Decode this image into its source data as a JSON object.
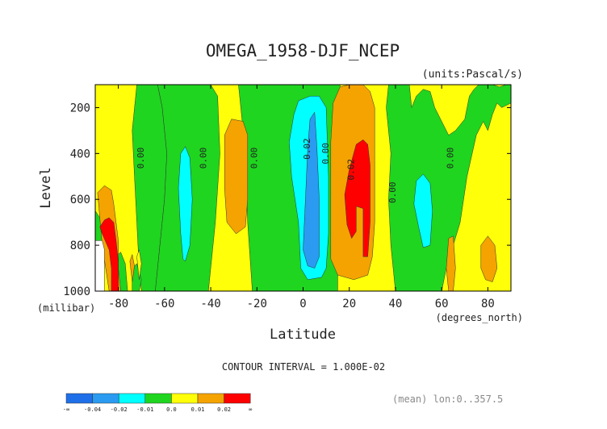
{
  "chart_data": {
    "type": "contour",
    "title": "OMEGA_1958-DJF_NCEP",
    "units_label": "(units:Pascal/s)",
    "xlabel": "Latitude",
    "ylabel": "Level",
    "x_unit_label": "(degrees_north)",
    "y_unit_label": "(millibar)",
    "xlim": [
      -90,
      90
    ],
    "ylim": [
      1000,
      100
    ],
    "x_ticks": [
      -80,
      -60,
      -40,
      -20,
      0,
      20,
      40,
      60,
      80
    ],
    "y_ticks": [
      200,
      400,
      600,
      800,
      1000
    ],
    "contour_interval_text": "CONTOUR INTERVAL = 1.000E-02",
    "mean_text": "(mean) lon:0..357.5",
    "colorbar": {
      "labels": [
        "-∞",
        "-0.04",
        "-0.02",
        "-0.01",
        "0.0",
        "0.01",
        "0.02",
        "∞"
      ],
      "colors": [
        "#1f6fe8",
        "#2a9bf0",
        "#00ffff",
        "#1fd51f",
        "#ffff0a",
        "#f5a300",
        "#ff0000"
      ]
    },
    "background_color": "#ffff0a",
    "regions": [
      {
        "value_band": "0.0 to 0.01",
        "color": "#ffff0a",
        "polygon": [
          [
            -90,
            100
          ],
          [
            90,
            100
          ],
          [
            90,
            1000
          ],
          [
            -90,
            1000
          ]
        ]
      },
      {
        "value_band": "-0.01 to 0.0",
        "color": "#1fd51f",
        "polygon": [
          [
            -72,
            100
          ],
          [
            -63,
            100
          ],
          [
            -61,
            200
          ],
          [
            -59,
            400
          ],
          [
            -60,
            600
          ],
          [
            -62,
            800
          ],
          [
            -64,
            1000
          ],
          [
            -70,
            1000
          ],
          [
            -71,
            900
          ],
          [
            -72,
            700
          ],
          [
            -73,
            500
          ],
          [
            -74,
            300
          ]
        ]
      },
      {
        "value_band": "-0.01 to 0.0",
        "color": "#1fd51f",
        "polygon": [
          [
            -63,
            100
          ],
          [
            -40,
            100
          ],
          [
            -37,
            150
          ],
          [
            -36,
            400
          ],
          [
            -38,
            700
          ],
          [
            -41,
            1000
          ],
          [
            -64,
            1000
          ],
          [
            -62,
            800
          ],
          [
            -60,
            600
          ],
          [
            -59,
            400
          ],
          [
            -61,
            200
          ]
        ]
      },
      {
        "value_band": "-0.01 to 0.0",
        "color": "#1fd51f",
        "polygon": [
          [
            -28,
            100
          ],
          [
            16,
            100
          ],
          [
            16,
            350
          ],
          [
            15,
            700
          ],
          [
            15,
            1000
          ],
          [
            -22,
            1000
          ],
          [
            -24,
            700
          ],
          [
            -25,
            400
          ],
          [
            -27,
            200
          ]
        ]
      },
      {
        "value_band": "-0.01 to 0.0",
        "color": "#1fd51f",
        "polygon": [
          [
            37,
            100
          ],
          [
            46,
            100
          ],
          [
            47,
            200
          ],
          [
            49,
            150
          ],
          [
            52,
            120
          ],
          [
            55,
            130
          ],
          [
            57,
            200
          ],
          [
            60,
            260
          ],
          [
            63,
            320
          ],
          [
            66,
            300
          ],
          [
            70,
            250
          ],
          [
            72,
            150
          ],
          [
            74,
            120
          ],
          [
            76,
            100
          ],
          [
            82,
            100
          ],
          [
            85,
            110
          ],
          [
            88,
            100
          ],
          [
            90,
            100
          ],
          [
            90,
            180
          ],
          [
            86,
            200
          ],
          [
            84,
            180
          ],
          [
            82,
            230
          ],
          [
            80,
            300
          ],
          [
            78,
            260
          ],
          [
            75,
            320
          ],
          [
            71,
            500
          ],
          [
            68,
            700
          ],
          [
            65,
            800
          ],
          [
            62,
            900
          ],
          [
            60,
            1000
          ],
          [
            40,
            1000
          ],
          [
            38,
            800
          ],
          [
            37,
            600
          ],
          [
            38,
            400
          ],
          [
            36,
            200
          ]
        ]
      },
      {
        "value_band": "-0.01 to 0.0",
        "color": "#1fd51f",
        "polygon": [
          [
            -90,
            650
          ],
          [
            -88,
            680
          ],
          [
            -87,
            700
          ],
          [
            -87,
            1000
          ],
          [
            -90,
            1000
          ]
        ]
      },
      {
        "value_band": "-0.01 to 0.0",
        "color": "#1fd51f",
        "polygon": [
          [
            -81,
            850
          ],
          [
            -79,
            830
          ],
          [
            -77,
            880
          ],
          [
            -76,
            1000
          ],
          [
            -81,
            1000
          ]
        ]
      },
      {
        "value_band": "-0.01 to 0.0",
        "color": "#1fd51f",
        "polygon": [
          [
            -74,
            900
          ],
          [
            -72,
            880
          ],
          [
            -70,
            950
          ],
          [
            -71,
            1000
          ],
          [
            -74,
            1000
          ]
        ]
      },
      {
        "value_band": "0.0 to 0.01",
        "color": "#ffff0a",
        "polygon": [
          [
            -72,
            850
          ],
          [
            -71,
            820
          ],
          [
            -70,
            880
          ],
          [
            -71,
            950
          ]
        ]
      },
      {
        "value_band": "0.01 to 0.02",
        "color": "#f5a300",
        "polygon": [
          [
            -89,
            570
          ],
          [
            -86,
            540
          ],
          [
            -83,
            560
          ],
          [
            -82,
            620
          ],
          [
            -81,
            700
          ],
          [
            -80,
            780
          ],
          [
            -80,
            900
          ],
          [
            -79,
            1000
          ],
          [
            -84,
            1000
          ],
          [
            -87,
            800
          ]
        ]
      },
      {
        "value_band": "0.01 to 0.02",
        "color": "#f5a300",
        "polygon": [
          [
            -75,
            870
          ],
          [
            -74,
            840
          ],
          [
            -73,
            890
          ],
          [
            -74,
            960
          ]
        ]
      },
      {
        "value_band": "0.01 to 0.02",
        "color": "#f5a300",
        "polygon": [
          [
            -34,
            320
          ],
          [
            -31,
            250
          ],
          [
            -26,
            260
          ],
          [
            -24,
            320
          ],
          [
            -24,
            600
          ],
          [
            -25,
            720
          ],
          [
            -29,
            750
          ],
          [
            -33,
            700
          ],
          [
            -34,
            550
          ]
        ]
      },
      {
        "value_band": "0.01 to 0.02",
        "color": "#f5a300",
        "polygon": [
          [
            13,
            180
          ],
          [
            16,
            110
          ],
          [
            20,
            100
          ],
          [
            26,
            100
          ],
          [
            29,
            130
          ],
          [
            31,
            200
          ],
          [
            31,
            700
          ],
          [
            30,
            850
          ],
          [
            28,
            930
          ],
          [
            22,
            950
          ],
          [
            15,
            930
          ],
          [
            12,
            860
          ],
          [
            12,
            600
          ],
          [
            12,
            350
          ]
        ]
      },
      {
        "value_band": "0.01 to 0.02",
        "color": "#f5a300",
        "polygon": [
          [
            63,
            770
          ],
          [
            65,
            760
          ],
          [
            66,
            900
          ],
          [
            65,
            1000
          ],
          [
            63,
            1000
          ],
          [
            62,
            900
          ]
        ]
      },
      {
        "value_band": "0.01 to 0.02",
        "color": "#f5a300",
        "polygon": [
          [
            77,
            800
          ],
          [
            80,
            760
          ],
          [
            83,
            800
          ],
          [
            84,
            900
          ],
          [
            82,
            960
          ],
          [
            79,
            950
          ],
          [
            77,
            900
          ]
        ]
      },
      {
        "value_band": "0.02 to ∞",
        "color": "#ff0000",
        "polygon": [
          [
            -88,
            720
          ],
          [
            -86,
            690
          ],
          [
            -84,
            680
          ],
          [
            -82,
            700
          ],
          [
            -81,
            780
          ],
          [
            -80,
            870
          ],
          [
            -80,
            1000
          ],
          [
            -83,
            1000
          ],
          [
            -83,
            900
          ],
          [
            -84,
            820
          ],
          [
            -87,
            750
          ]
        ]
      },
      {
        "value_band": "0.02 to ∞",
        "color": "#ff0000",
        "polygon": [
          [
            18,
            580
          ],
          [
            20,
            470
          ],
          [
            23,
            360
          ],
          [
            26,
            340
          ],
          [
            28,
            360
          ],
          [
            29,
            450
          ],
          [
            29,
            600
          ],
          [
            29,
            700
          ],
          [
            28,
            850
          ],
          [
            26,
            850
          ],
          [
            26,
            760
          ],
          [
            26,
            640
          ],
          [
            23,
            630
          ],
          [
            23,
            740
          ],
          [
            21,
            770
          ],
          [
            19,
            710
          ]
        ]
      },
      {
        "value_band": "-0.02 to -0.01",
        "color": "#00ffff",
        "polygon": [
          [
            -53,
            400
          ],
          [
            -51,
            370
          ],
          [
            -49,
            420
          ],
          [
            -48,
            600
          ],
          [
            -49,
            800
          ],
          [
            -51,
            870
          ],
          [
            -52,
            860
          ],
          [
            -53,
            750
          ],
          [
            -54,
            550
          ]
        ]
      },
      {
        "value_band": "-0.02 to -0.01",
        "color": "#00ffff",
        "polygon": [
          [
            -4,
            230
          ],
          [
            -2,
            170
          ],
          [
            3,
            150
          ],
          [
            7,
            150
          ],
          [
            10,
            200
          ],
          [
            11,
            500
          ],
          [
            11,
            750
          ],
          [
            10,
            900
          ],
          [
            8,
            940
          ],
          [
            2,
            950
          ],
          [
            -1,
            900
          ],
          [
            -2,
            700
          ],
          [
            -5,
            500
          ],
          [
            -6,
            350
          ]
        ]
      },
      {
        "value_band": "-0.02 to -0.01",
        "color": "#00ffff",
        "polygon": [
          [
            49,
            520
          ],
          [
            52,
            490
          ],
          [
            55,
            530
          ],
          [
            56,
            650
          ],
          [
            55,
            800
          ],
          [
            52,
            810
          ],
          [
            50,
            720
          ],
          [
            48,
            620
          ]
        ]
      },
      {
        "value_band": "-0.04 to -0.02",
        "color": "#2a9bf0",
        "polygon": [
          [
            2,
            380
          ],
          [
            3,
            250
          ],
          [
            5,
            220
          ],
          [
            6,
            380
          ],
          [
            7,
            600
          ],
          [
            7,
            850
          ],
          [
            5,
            900
          ],
          [
            2,
            890
          ],
          [
            0,
            820
          ],
          [
            1,
            600
          ]
        ]
      },
      {
        "value_band": "white",
        "color": "#ffffff",
        "polygon": [
          [
            -90,
            780
          ],
          [
            -87,
            780
          ],
          [
            -86,
            820
          ],
          [
            -86,
            1000
          ],
          [
            -90,
            1000
          ]
        ]
      }
    ],
    "contour_labels": [
      {
        "text": "0.00",
        "x": -69,
        "y": 420
      },
      {
        "text": "0.00",
        "x": -42,
        "y": 420
      },
      {
        "text": "0.00",
        "x": -20,
        "y": 420
      },
      {
        "text": "0.02",
        "x": 3,
        "y": 380
      },
      {
        "text": "0.00",
        "x": 11,
        "y": 400
      },
      {
        "text": "0.02",
        "x": 22,
        "y": 470
      },
      {
        "text": "0.00",
        "x": 40,
        "y": 570
      },
      {
        "text": "0.00",
        "x": 65,
        "y": 420
      }
    ]
  }
}
